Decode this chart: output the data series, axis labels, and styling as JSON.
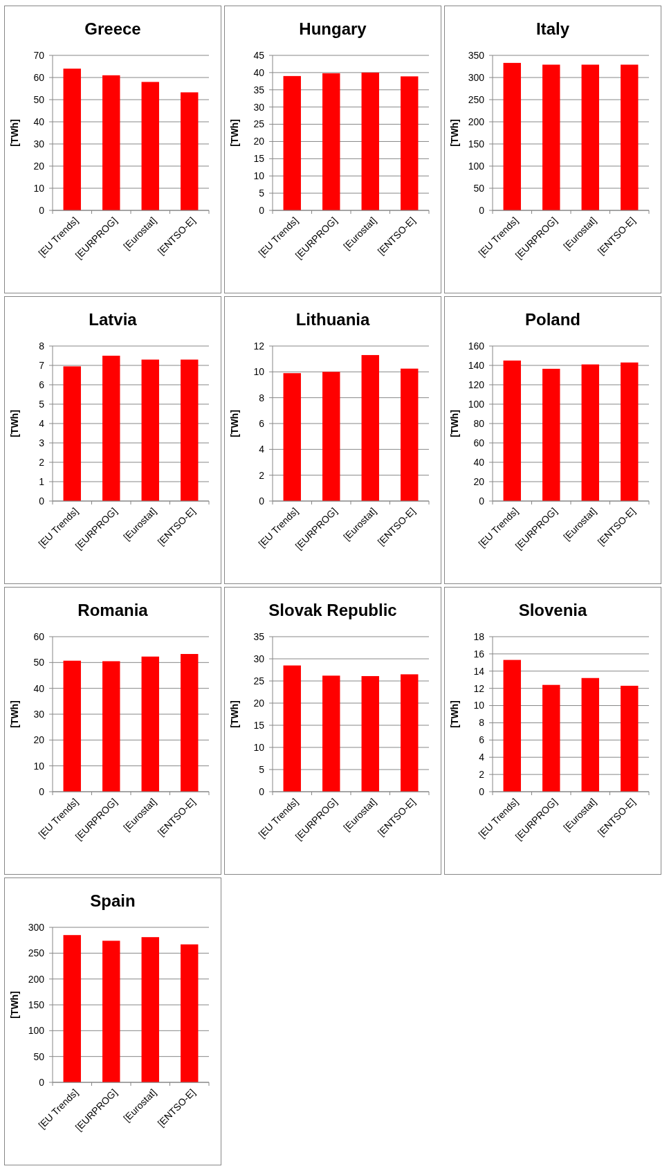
{
  "chart_data": [
    {
      "type": "bar",
      "title": "Greece",
      "ylabel": "[TWh]",
      "categories": [
        "[EU Trends]",
        "[EURPROG]",
        "[Eurostat]",
        "[ENTSO-E]"
      ],
      "values": [
        64,
        61,
        58,
        53.3
      ],
      "color": "#ff0000",
      "ylim": [
        0,
        70
      ],
      "yticks": [
        0,
        10,
        20,
        30,
        40,
        50,
        60,
        70
      ],
      "grid": "y"
    },
    {
      "type": "bar",
      "title": "Hungary",
      "ylabel": "[TWh]",
      "categories": [
        "[EU Trends]",
        "[EURPROG]",
        "[Eurostat]",
        "[ENTSO-E]"
      ],
      "values": [
        39,
        39.8,
        40,
        38.9
      ],
      "color": "#ff0000",
      "ylim": [
        0,
        45
      ],
      "yticks": [
        0,
        5,
        10,
        15,
        20,
        25,
        30,
        35,
        40,
        45
      ],
      "grid": "y"
    },
    {
      "type": "bar",
      "title": "Italy",
      "ylabel": "[TWh]",
      "categories": [
        "[EU Trends]",
        "[EURPROG]",
        "[Eurostat]",
        "[ENTSO-E]"
      ],
      "values": [
        333,
        329,
        329,
        329
      ],
      "color": "#ff0000",
      "ylim": [
        0,
        350
      ],
      "yticks": [
        0,
        50,
        100,
        150,
        200,
        250,
        300,
        350
      ],
      "grid": "y"
    },
    {
      "type": "bar",
      "title": "Latvia",
      "ylabel": "[TWh]",
      "categories": [
        "[EU Trends]",
        "[EURPROG]",
        "[Eurostat]",
        "[ENTSO-E]"
      ],
      "values": [
        6.95,
        7.5,
        7.3,
        7.3
      ],
      "color": "#ff0000",
      "ylim": [
        0,
        8
      ],
      "yticks": [
        0,
        1,
        2,
        3,
        4,
        5,
        6,
        7,
        8
      ],
      "grid": "y"
    },
    {
      "type": "bar",
      "title": "Lithuania",
      "ylabel": "[TWh]",
      "categories": [
        "[EU Trends]",
        "[EURPROG]",
        "[Eurostat]",
        "[ENTSO-E]"
      ],
      "values": [
        9.9,
        10,
        11.3,
        10.25
      ],
      "color": "#ff0000",
      "ylim": [
        0,
        12
      ],
      "yticks": [
        0,
        2,
        4,
        6,
        8,
        10,
        12
      ],
      "grid": "y"
    },
    {
      "type": "bar",
      "title": "Poland",
      "ylabel": "[TWh]",
      "categories": [
        "[EU Trends]",
        "[EURPROG]",
        "[Eurostat]",
        "[ENTSO-E]"
      ],
      "values": [
        145,
        136.5,
        141,
        143
      ],
      "color": "#ff0000",
      "ylim": [
        0,
        160
      ],
      "yticks": [
        0,
        20,
        40,
        60,
        80,
        100,
        120,
        140,
        160
      ],
      "grid": "y"
    },
    {
      "type": "bar",
      "title": "Romania",
      "ylabel": "[TWh]",
      "categories": [
        "[EU Trends]",
        "[EURPROG]",
        "[Eurostat]",
        "[ENTSO-E]"
      ],
      "values": [
        50.7,
        50.5,
        52.3,
        53.3
      ],
      "color": "#ff0000",
      "ylim": [
        0,
        60
      ],
      "yticks": [
        0,
        10,
        20,
        30,
        40,
        50,
        60
      ],
      "grid": "y"
    },
    {
      "type": "bar",
      "title": "Slovak Republic",
      "ylabel": "[TWh]",
      "categories": [
        "[EU Trends]",
        "[EURPROG]",
        "[Eurostat]",
        "[ENTSO-E]"
      ],
      "values": [
        28.5,
        26.2,
        26.1,
        26.5
      ],
      "color": "#ff0000",
      "ylim": [
        0,
        35
      ],
      "yticks": [
        0,
        5,
        10,
        15,
        20,
        25,
        30,
        35
      ],
      "grid": "y"
    },
    {
      "type": "bar",
      "title": "Slovenia",
      "ylabel": "[TWh]",
      "categories": [
        "[EU Trends]",
        "[EURPROG]",
        "[Eurostat]",
        "[ENTSO-E]"
      ],
      "values": [
        15.3,
        12.4,
        13.2,
        12.3
      ],
      "color": "#ff0000",
      "ylim": [
        0,
        18
      ],
      "yticks": [
        0,
        2,
        4,
        6,
        8,
        10,
        12,
        14,
        16,
        18
      ],
      "grid": "y"
    },
    {
      "type": "bar",
      "title": "Spain",
      "ylabel": "[TWh]",
      "categories": [
        "[EU Trends]",
        "[EURPROG]",
        "[Eurostat]",
        "[ENTSO-E]"
      ],
      "values": [
        285,
        274,
        281,
        267
      ],
      "color": "#ff0000",
      "ylim": [
        0,
        300
      ],
      "yticks": [
        0,
        50,
        100,
        150,
        200,
        250,
        300
      ],
      "grid": "y"
    }
  ]
}
